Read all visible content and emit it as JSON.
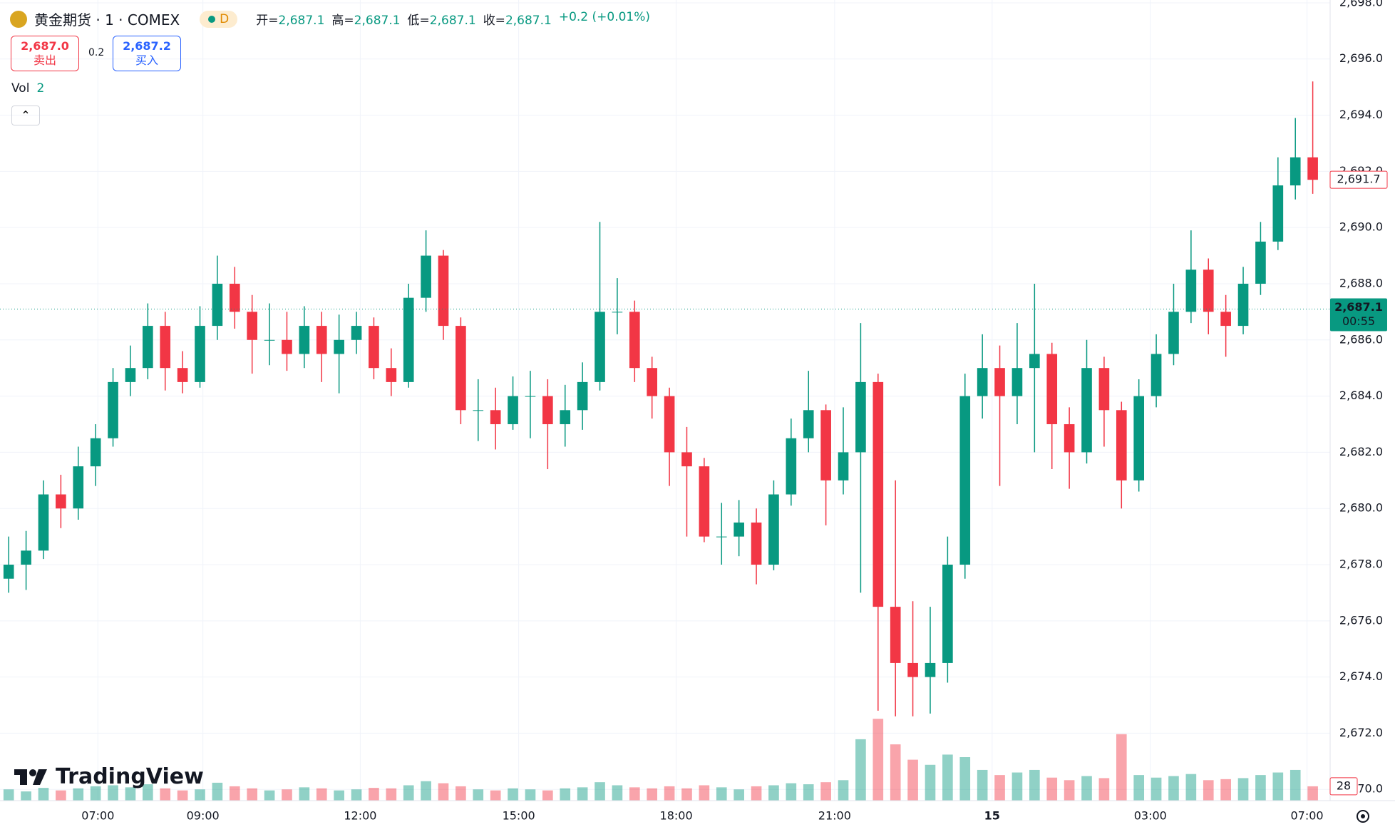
{
  "chart_data": {
    "type": "candlestick",
    "title": "黄金期货 · 1 · COMEX",
    "interval_badge": "D",
    "ohlc_legend": [
      {
        "label": "开=",
        "value": "2,687.1"
      },
      {
        "label": "高=",
        "value": "2,687.1"
      },
      {
        "label": "低=",
        "value": "2,687.1"
      },
      {
        "label": "收=",
        "value": "2,687.1"
      }
    ],
    "change": "+0.2 (+0.01%)",
    "sell": {
      "price": "2,687.0",
      "label": "卖出"
    },
    "spread": "0.2",
    "buy": {
      "price": "2,687.2",
      "label": "买入"
    },
    "volume_legend": {
      "label": "Vol",
      "value": "2"
    },
    "brand": "TradingView",
    "up_color": "#089981",
    "down_color": "#f23645",
    "grid": true,
    "xlim": [
      -0.5,
      76
    ],
    "xticks": [
      {
        "value": 5.13,
        "label": "07:00"
      },
      {
        "value": 11.17,
        "label": "09:00"
      },
      {
        "value": 20.22,
        "label": "12:00"
      },
      {
        "value": 29.33,
        "label": "15:00"
      },
      {
        "value": 38.39,
        "label": "18:00"
      },
      {
        "value": 47.5,
        "label": "21:00"
      },
      {
        "value": 56.56,
        "label": "15"
      },
      {
        "value": 65.66,
        "label": "03:00"
      },
      {
        "value": 74.67,
        "label": "07:00"
      }
    ],
    "ylim": [
      2669.6,
      2698.1
    ],
    "yticks": [
      {
        "value": 2670,
        "label": "2,670.0"
      },
      {
        "value": 2672,
        "label": "2,672.0"
      },
      {
        "value": 2674,
        "label": "2,674.0"
      },
      {
        "value": 2676,
        "label": "2,676.0"
      },
      {
        "value": 2678,
        "label": "2,678.0"
      },
      {
        "value": 2680,
        "label": "2,680.0"
      },
      {
        "value": 2682,
        "label": "2,682.0"
      },
      {
        "value": 2684,
        "label": "2,684.0"
      },
      {
        "value": 2686,
        "label": "2,686.0"
      },
      {
        "value": 2688,
        "label": "2,688.0"
      },
      {
        "value": 2690,
        "label": "2,690.0"
      },
      {
        "value": 2692,
        "label": "2,692.0"
      },
      {
        "value": 2694,
        "label": "2,694.0"
      },
      {
        "value": 2696,
        "label": "2,696.0"
      },
      {
        "value": 2698,
        "label": "2,698.0"
      }
    ],
    "volume_lim": [
      0,
      400
    ],
    "price_line": {
      "value": 2687.1,
      "label": "2,687.1",
      "countdown": "00:55"
    },
    "last_price": {
      "value": 2691.7,
      "label": "2,691.7"
    },
    "last_volume": {
      "value": 28,
      "label": "28"
    },
    "open": [
      2677.5,
      2678.0,
      2678.5,
      2680.5,
      2680.0,
      2681.5,
      2682.5,
      2684.5,
      2685.0,
      2686.5,
      2685.0,
      2684.5,
      2686.5,
      2688.0,
      2687.0,
      2686.0,
      2686.0,
      2685.5,
      2686.5,
      2685.5,
      2686.0,
      2686.5,
      2685.0,
      2684.5,
      2687.5,
      2689.0,
      2686.5,
      2683.5,
      2683.5,
      2683.0,
      2684.0,
      2684.0,
      2683.0,
      2683.5,
      2684.5,
      2687.0,
      2687.0,
      2685.0,
      2684.0,
      2682.0,
      2681.5,
      2679.0,
      2679.0,
      2679.5,
      2678.0,
      2680.5,
      2682.5,
      2683.5,
      2681.0,
      2682.0,
      2684.5,
      2676.5,
      2674.5,
      2674.0,
      2674.5,
      2678.0,
      2684.0,
      2685.0,
      2684.0,
      2685.0,
      2685.5,
      2683.0,
      2682.0,
      2685.0,
      2683.5,
      2681.0,
      2684.0,
      2685.5,
      2687.0,
      2688.5,
      2687.0,
      2686.5,
      2688.0,
      2689.5,
      2691.5,
      2692.5
    ],
    "high": [
      2679.0,
      2679.2,
      2681.0,
      2681.2,
      2682.2,
      2683.0,
      2685.0,
      2685.8,
      2687.3,
      2687.0,
      2685.6,
      2687.2,
      2689.0,
      2688.6,
      2687.6,
      2687.3,
      2687.0,
      2687.2,
      2687.0,
      2686.9,
      2687.0,
      2686.8,
      2685.7,
      2688.0,
      2689.9,
      2689.2,
      2686.8,
      2684.6,
      2684.3,
      2684.7,
      2684.9,
      2684.6,
      2684.4,
      2685.2,
      2690.2,
      2688.2,
      2687.4,
      2685.4,
      2684.3,
      2682.9,
      2681.8,
      2680.2,
      2680.3,
      2680.0,
      2681.0,
      2683.2,
      2684.9,
      2683.7,
      2683.6,
      2686.6,
      2684.8,
      2681.0,
      2676.7,
      2676.5,
      2679.0,
      2684.8,
      2686.2,
      2685.8,
      2686.6,
      2688.0,
      2685.9,
      2683.6,
      2686.0,
      2685.4,
      2683.8,
      2684.6,
      2686.2,
      2688.0,
      2689.9,
      2688.9,
      2687.6,
      2688.6,
      2690.2,
      2692.5,
      2693.9,
      2695.2
    ],
    "low": [
      2677.0,
      2677.1,
      2678.2,
      2679.3,
      2679.6,
      2680.8,
      2682.2,
      2684.0,
      2684.6,
      2684.2,
      2684.1,
      2684.3,
      2686.0,
      2686.4,
      2684.8,
      2685.1,
      2684.9,
      2685.0,
      2684.5,
      2684.1,
      2685.5,
      2684.6,
      2684.0,
      2684.3,
      2687.0,
      2686.0,
      2683.0,
      2682.4,
      2682.1,
      2682.8,
      2682.5,
      2681.4,
      2682.2,
      2682.8,
      2684.2,
      2686.2,
      2684.5,
      2683.2,
      2680.8,
      2679.0,
      2678.8,
      2678.0,
      2678.3,
      2677.3,
      2677.8,
      2680.1,
      2682.0,
      2679.4,
      2680.5,
      2677.0,
      2672.8,
      2672.6,
      2672.6,
      2672.7,
      2673.8,
      2677.5,
      2683.2,
      2680.8,
      2683.0,
      2682.0,
      2681.4,
      2680.7,
      2681.6,
      2682.2,
      2680.0,
      2680.6,
      2683.6,
      2685.1,
      2686.6,
      2686.2,
      2685.4,
      2686.2,
      2687.6,
      2689.2,
      2691.0,
      2691.2
    ],
    "close": [
      2678.0,
      2678.5,
      2680.5,
      2680.0,
      2681.5,
      2682.5,
      2684.5,
      2685.0,
      2686.5,
      2685.0,
      2684.5,
      2686.5,
      2688.0,
      2687.0,
      2686.0,
      2686.0,
      2685.5,
      2686.5,
      2685.5,
      2686.0,
      2686.5,
      2685.0,
      2684.5,
      2687.5,
      2689.0,
      2686.5,
      2683.5,
      2683.5,
      2683.0,
      2684.0,
      2684.0,
      2683.0,
      2683.5,
      2684.5,
      2687.0,
      2687.0,
      2685.0,
      2684.0,
      2682.0,
      2681.5,
      2679.0,
      2679.0,
      2679.5,
      2678.0,
      2680.5,
      2682.5,
      2683.5,
      2681.0,
      2682.0,
      2684.5,
      2676.5,
      2674.5,
      2674.0,
      2674.5,
      2678.0,
      2684.0,
      2685.0,
      2684.0,
      2685.0,
      2685.5,
      2683.0,
      2682.0,
      2685.0,
      2683.5,
      2681.0,
      2684.0,
      2685.5,
      2687.0,
      2688.5,
      2687.0,
      2686.5,
      2688.0,
      2689.5,
      2691.5,
      2692.5,
      2691.7
    ],
    "volume": [
      22,
      18,
      25,
      20,
      24,
      28,
      30,
      26,
      32,
      24,
      20,
      22,
      35,
      28,
      24,
      20,
      22,
      26,
      24,
      20,
      22,
      25,
      24,
      30,
      38,
      34,
      28,
      22,
      20,
      24,
      22,
      20,
      24,
      26,
      36,
      30,
      26,
      24,
      28,
      24,
      30,
      26,
      22,
      28,
      30,
      34,
      32,
      36,
      40,
      120,
      160,
      110,
      80,
      70,
      90,
      85,
      60,
      50,
      55,
      60,
      45,
      40,
      48,
      44,
      130,
      50,
      45,
      48,
      52,
      40,
      42,
      44,
      50,
      55,
      60,
      28
    ]
  }
}
